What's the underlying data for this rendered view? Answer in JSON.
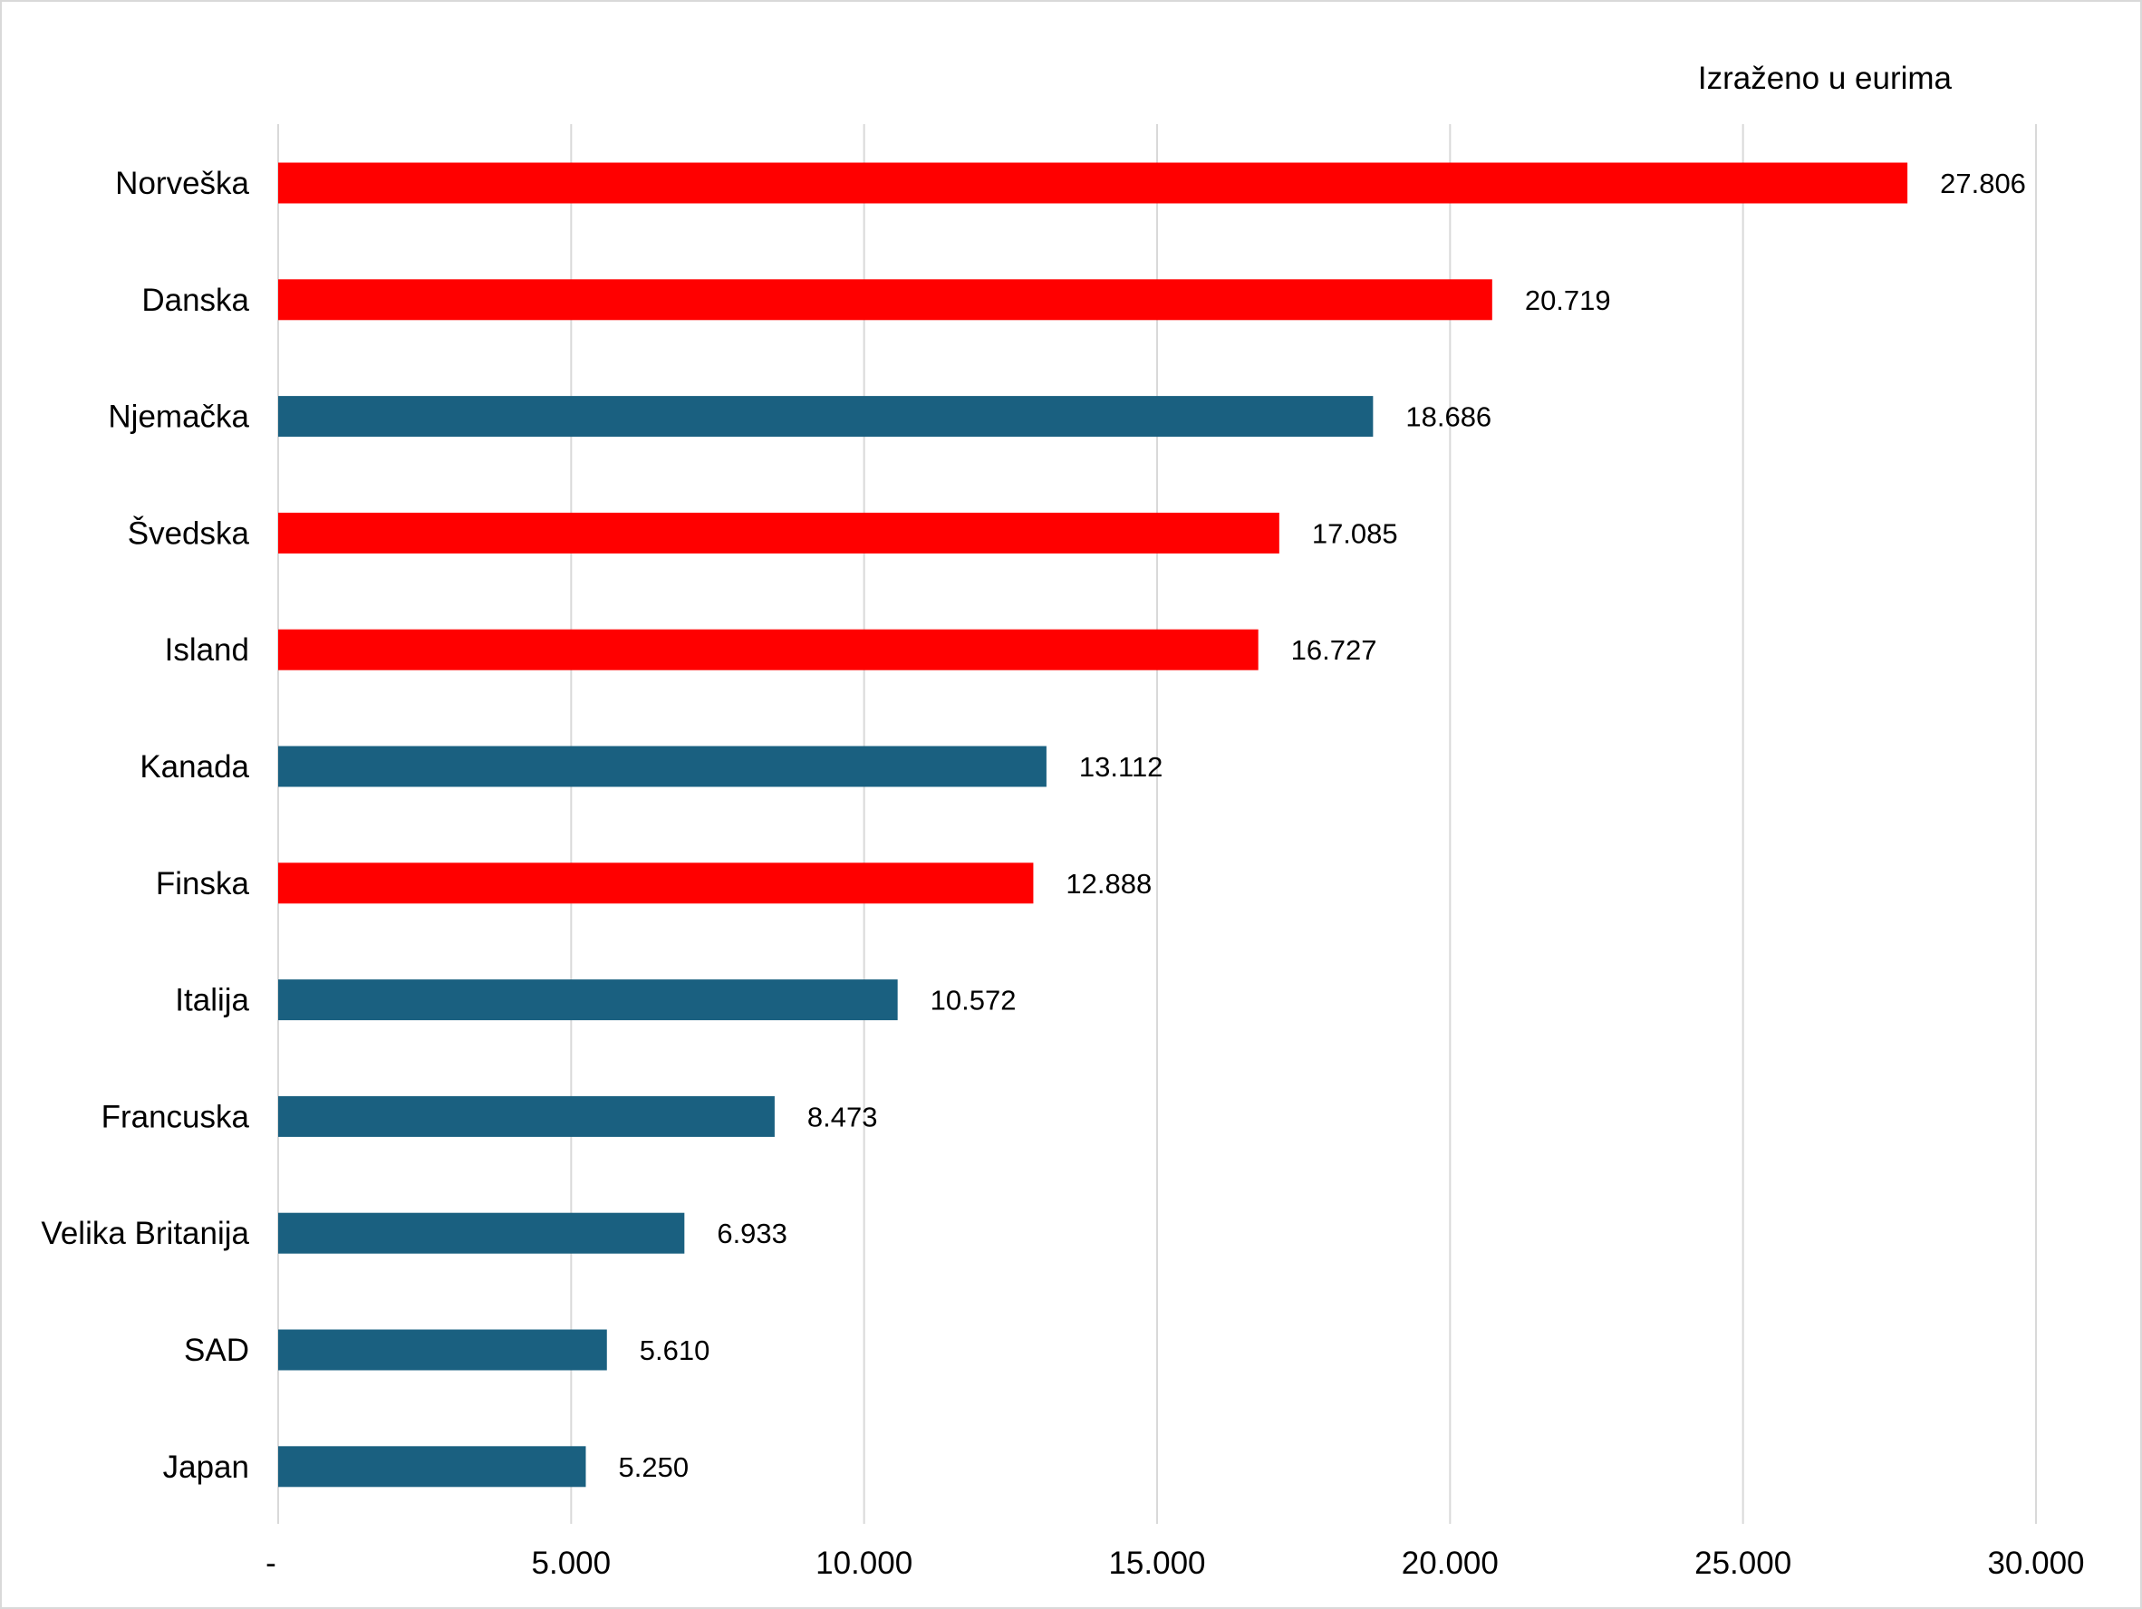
{
  "chart_data": {
    "type": "bar",
    "orientation": "horizontal",
    "note": "Izraženo u eurima",
    "categories": [
      "Norveška",
      "Danska",
      "Njemačka",
      "Švedska",
      "Island",
      "Kanada",
      "Finska",
      "Italija",
      "Francuska",
      "Velika Britanija",
      "SAD",
      "Japan"
    ],
    "values": [
      27806,
      20719,
      18686,
      17085,
      16727,
      13112,
      12888,
      10572,
      8473,
      6933,
      5610,
      5250
    ],
    "value_labels": [
      "27.806",
      "20.719",
      "18.686",
      "17.085",
      "16.727",
      "13.112",
      "12.888",
      "10.572",
      "8.473",
      "6.933",
      "5.610",
      "5.250"
    ],
    "bar_colors": [
      "#ff0000",
      "#ff0000",
      "#1a6080",
      "#ff0000",
      "#ff0000",
      "#1a6080",
      "#ff0000",
      "#1a6080",
      "#1a6080",
      "#1a6080",
      "#1a6080",
      "#1a6080"
    ],
    "x_ticks": [
      0,
      5000,
      10000,
      15000,
      20000,
      25000,
      30000
    ],
    "x_tick_labels": [
      "-",
      "5.000",
      "10.000",
      "15.000",
      "20.000",
      "25.000",
      "30.000"
    ],
    "xlim": [
      0,
      30000
    ],
    "grid": "vertical",
    "gridline_color": "#d9d9d9",
    "legend": "none"
  }
}
